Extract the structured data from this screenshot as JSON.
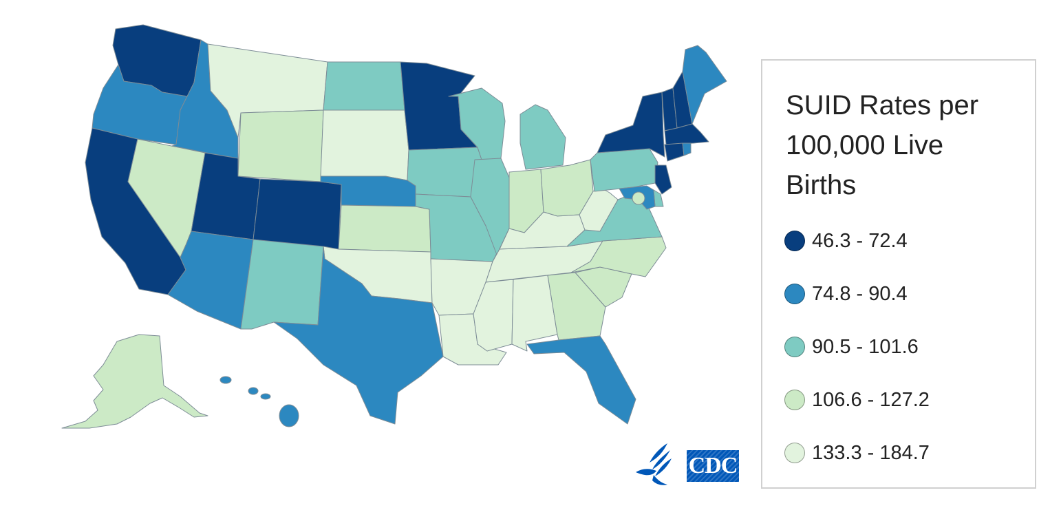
{
  "map": {
    "legend": {
      "title": "SUID Rates per 100,000 Live Births",
      "bins": [
        {
          "label": "46.3 - 72.4",
          "color": "#083e7e"
        },
        {
          "label": "74.8 - 90.4",
          "color": "#2c88c0"
        },
        {
          "label": "90.5 - 101.6",
          "color": "#7ecbc2"
        },
        {
          "label": "106.6 - 127.2",
          "color": "#cceac6"
        },
        {
          "label": "133.3 - 184.7",
          "color": "#e2f3de"
        }
      ]
    },
    "states": [
      {
        "id": "WA",
        "bin": 0
      },
      {
        "id": "OR",
        "bin": 1
      },
      {
        "id": "CA",
        "bin": 0
      },
      {
        "id": "ID",
        "bin": 1
      },
      {
        "id": "NV",
        "bin": 3
      },
      {
        "id": "MT",
        "bin": 4
      },
      {
        "id": "WY",
        "bin": 3
      },
      {
        "id": "UT",
        "bin": 0
      },
      {
        "id": "CO",
        "bin": 0
      },
      {
        "id": "AZ",
        "bin": 1
      },
      {
        "id": "NM",
        "bin": 2
      },
      {
        "id": "ND",
        "bin": 2
      },
      {
        "id": "SD",
        "bin": 4
      },
      {
        "id": "NE",
        "bin": 1
      },
      {
        "id": "KS",
        "bin": 3
      },
      {
        "id": "OK",
        "bin": 4
      },
      {
        "id": "TX",
        "bin": 1
      },
      {
        "id": "MN",
        "bin": 0
      },
      {
        "id": "IA",
        "bin": 2
      },
      {
        "id": "MO",
        "bin": 2
      },
      {
        "id": "AR",
        "bin": 4
      },
      {
        "id": "LA",
        "bin": 4
      },
      {
        "id": "WI",
        "bin": 2
      },
      {
        "id": "IL",
        "bin": 2
      },
      {
        "id": "MI",
        "bin": 2
      },
      {
        "id": "IN",
        "bin": 3
      },
      {
        "id": "OH",
        "bin": 3
      },
      {
        "id": "KY",
        "bin": 4
      },
      {
        "id": "TN",
        "bin": 4
      },
      {
        "id": "MS",
        "bin": 4
      },
      {
        "id": "AL",
        "bin": 4
      },
      {
        "id": "GA",
        "bin": 3
      },
      {
        "id": "FL",
        "bin": 1
      },
      {
        "id": "SC",
        "bin": 3
      },
      {
        "id": "NC",
        "bin": 3
      },
      {
        "id": "VA",
        "bin": 2
      },
      {
        "id": "WV",
        "bin": 4
      },
      {
        "id": "PA",
        "bin": 2
      },
      {
        "id": "NY",
        "bin": 0
      },
      {
        "id": "VT",
        "bin": 0
      },
      {
        "id": "NH",
        "bin": 0
      },
      {
        "id": "ME",
        "bin": 1
      },
      {
        "id": "MA",
        "bin": 0
      },
      {
        "id": "CT",
        "bin": 0
      },
      {
        "id": "RI",
        "bin": 1
      },
      {
        "id": "NJ",
        "bin": 0
      },
      {
        "id": "DE",
        "bin": 2
      },
      {
        "id": "MD",
        "bin": 1
      },
      {
        "id": "DC",
        "bin": 3
      },
      {
        "id": "AK",
        "bin": 3
      },
      {
        "id": "HI",
        "bin": 1
      }
    ]
  }
}
